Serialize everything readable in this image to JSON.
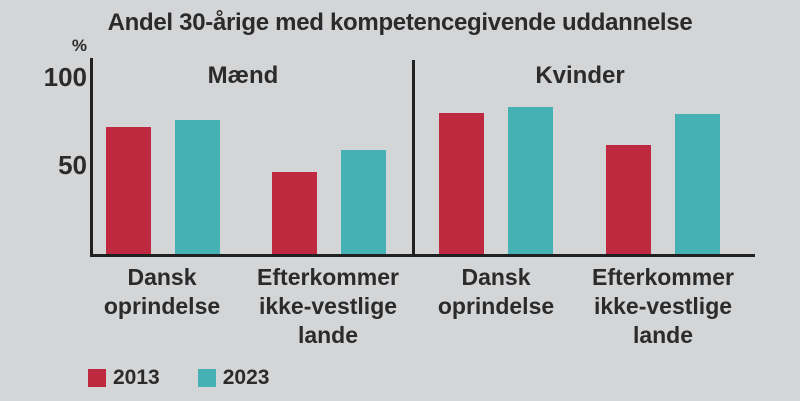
{
  "chart_data": {
    "type": "bar",
    "title": "Andel 30-årige med kompetencegivende uddannelse",
    "y_unit": "%",
    "ylim": [
      0,
      100
    ],
    "yticks": [
      "100",
      "50"
    ],
    "grid": false,
    "legend_position": "bottom-left",
    "panels": [
      {
        "label": "Mænd"
      },
      {
        "label": "Kvinder"
      }
    ],
    "categories": [
      "Dansk oprindelse",
      "Efterkommer ikke-vestlige lande",
      "Dansk oprindelse",
      "Efterkommer ikke-vestlige lande"
    ],
    "series": [
      {
        "name": "2013",
        "color": "#bf2940",
        "values": [
          71,
          46,
          79,
          61
        ]
      },
      {
        "name": "2023",
        "color": "#45b1b4",
        "values": [
          75,
          58,
          82,
          78
        ]
      }
    ]
  },
  "colors": {
    "background": "#d4d5d7",
    "text": "#2b2b2b",
    "axis": "#212121"
  }
}
